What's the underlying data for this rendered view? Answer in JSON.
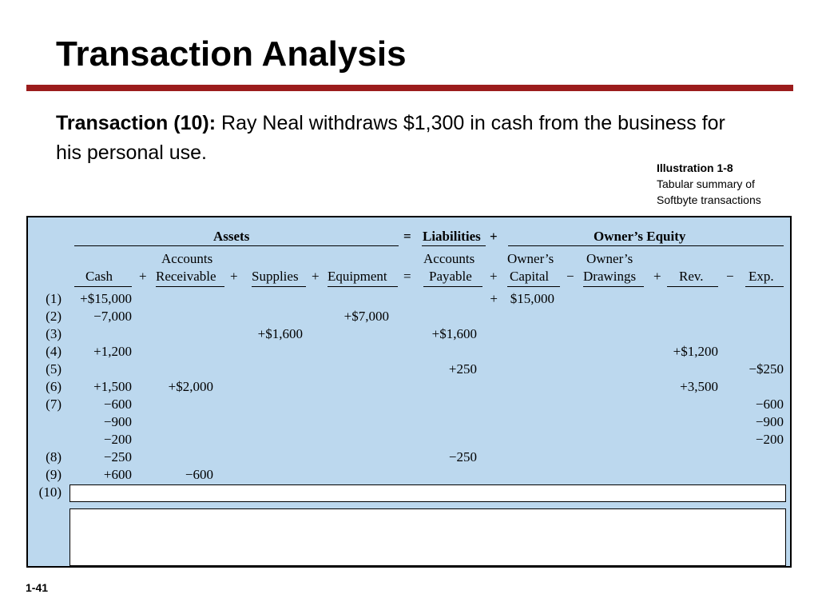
{
  "slide": {
    "title": "Transaction Analysis",
    "subtitle_lead": "Transaction (10):",
    "subtitle_text": "Ray Neal withdraws $1,300 in cash from the business for his personal use.",
    "illustration": {
      "number": "Illustration 1-8",
      "line1": "Tabular summary of",
      "line2": "Softbyte transactions"
    },
    "page_number": "1-41"
  },
  "table": {
    "groups": {
      "assets": "Assets",
      "equals": "=",
      "liabilities": "Liabilities",
      "plus": "+",
      "owners_equity": "Owner’s Equity"
    },
    "headers": {
      "cash": "Cash",
      "ar_top": "Accounts",
      "ar_bottom": "Receivable",
      "supplies": "Supplies",
      "equipment": "Equipment",
      "ap_top": "Accounts",
      "ap_bottom": "Payable",
      "oc_top": "Owner’s",
      "oc_bottom": "Capital",
      "od_top": "Owner’s",
      "od_bottom": "Drawings",
      "rev": "Rev.",
      "exp": "Exp."
    },
    "operators": {
      "plus": "+",
      "equals": "=",
      "minus": "−"
    },
    "rows": [
      {
        "label": "(1)",
        "cash": "+$15,000",
        "ar": "",
        "supplies": "",
        "equipment": "",
        "ap": "",
        "oc_sign": "+",
        "oc": "$15,000",
        "od": "",
        "rev": "",
        "exp": ""
      },
      {
        "label": "(2)",
        "cash": "−7,000",
        "ar": "",
        "supplies": "",
        "equipment": "+$7,000",
        "ap": "",
        "oc_sign": "",
        "oc": "",
        "od": "",
        "rev": "",
        "exp": ""
      },
      {
        "label": "(3)",
        "cash": "",
        "ar": "",
        "supplies": "+$1,600",
        "equipment": "",
        "ap": "+$1,600",
        "oc_sign": "",
        "oc": "",
        "od": "",
        "rev": "",
        "exp": ""
      },
      {
        "label": "(4)",
        "cash": "+1,200",
        "ar": "",
        "supplies": "",
        "equipment": "",
        "ap": "",
        "oc_sign": "",
        "oc": "",
        "od": "",
        "rev": "+$1,200",
        "exp": ""
      },
      {
        "label": "(5)",
        "cash": "",
        "ar": "",
        "supplies": "",
        "equipment": "",
        "ap": "+250",
        "oc_sign": "",
        "oc": "",
        "od": "",
        "rev": "",
        "exp": "−$250"
      },
      {
        "label": "(6)",
        "cash": "+1,500",
        "ar": "+$2,000",
        "supplies": "",
        "equipment": "",
        "ap": "",
        "oc_sign": "",
        "oc": "",
        "od": "",
        "rev": "+3,500",
        "exp": ""
      },
      {
        "label": "(7)",
        "cash": "−600",
        "ar": "",
        "supplies": "",
        "equipment": "",
        "ap": "",
        "oc_sign": "",
        "oc": "",
        "od": "",
        "rev": "",
        "exp": "−600"
      },
      {
        "label": "",
        "cash": "−900",
        "ar": "",
        "supplies": "",
        "equipment": "",
        "ap": "",
        "oc_sign": "",
        "oc": "",
        "od": "",
        "rev": "",
        "exp": "−900"
      },
      {
        "label": "",
        "cash": "−200",
        "ar": "",
        "supplies": "",
        "equipment": "",
        "ap": "",
        "oc_sign": "",
        "oc": "",
        "od": "",
        "rev": "",
        "exp": "−200"
      },
      {
        "label": "(8)",
        "cash": "−250",
        "ar": "",
        "supplies": "",
        "equipment": "",
        "ap": "−250",
        "oc_sign": "",
        "oc": "",
        "od": "",
        "rev": "",
        "exp": ""
      },
      {
        "label": "(9)",
        "cash": "+600",
        "ar": "−600",
        "supplies": "",
        "equipment": "",
        "ap": "",
        "oc_sign": "",
        "oc": "",
        "od": "",
        "rev": "",
        "exp": ""
      },
      {
        "label": "(10)",
        "cash": "",
        "ar": "",
        "supplies": "",
        "equipment": "",
        "ap": "",
        "oc_sign": "",
        "oc": "",
        "od": "",
        "rev": "",
        "exp": ""
      }
    ]
  }
}
